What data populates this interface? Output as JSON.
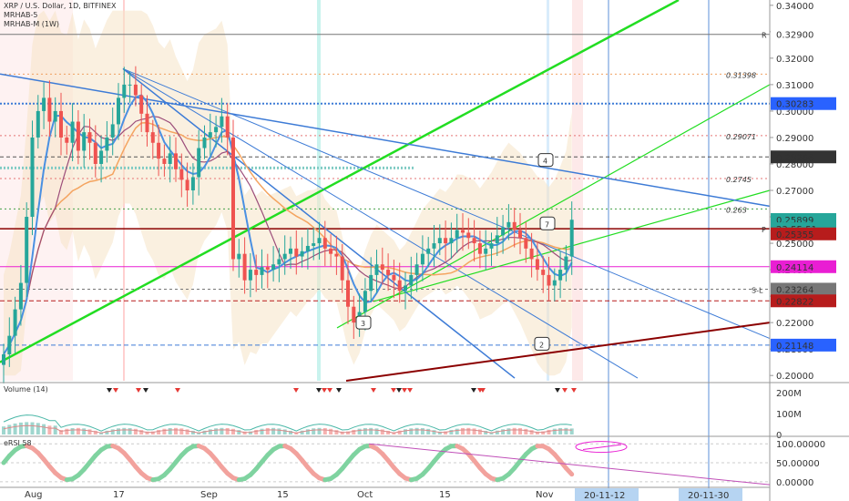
{
  "header": {
    "symbol_line": "XRP / U.S. Dollar, 1D, BITFINEX",
    "indicator_1": "MRHAB-5",
    "indicator_2": "MRHAB-M (1W)"
  },
  "colors": {
    "up": "#26a69a",
    "down": "#ef5350",
    "green_line": "#22dd22",
    "blue_line": "#3d7bd6",
    "maroon": "#8b0000",
    "magenta": "#e91ed3"
  },
  "chart_data": [
    {
      "type": "candlestick",
      "title": "XRP / U.S. Dollar, 1D, BITFINEX",
      "x_ticks": [
        "Aug",
        "17",
        "Sep",
        "15",
        "Oct",
        "15",
        "Nov",
        "20-11-12",
        "20-11-30"
      ],
      "y_ticks": [
        0.34,
        0.33,
        0.32,
        0.31,
        0.3,
        0.29,
        0.28,
        0.27,
        0.26,
        0.25,
        0.24,
        0.23,
        0.22,
        0.21,
        0.2
      ],
      "y_tick_labels": [
        "0.34000",
        "0.33000",
        "0.32000",
        "0.31000",
        "0.30000",
        "0.29000",
        "0.28000",
        "0.27000",
        "0.26000",
        "0.25000",
        "0.24000",
        "0.23000",
        "0.22000",
        "0.21000",
        "0.20000"
      ],
      "ylim": [
        0.198,
        0.342
      ],
      "close": [
        0.208,
        0.215,
        0.225,
        0.235,
        0.26,
        0.29,
        0.3,
        0.305,
        0.296,
        0.3,
        0.29,
        0.288,
        0.296,
        0.285,
        0.292,
        0.288,
        0.28,
        0.285,
        0.29,
        0.295,
        0.305,
        0.31,
        0.31,
        0.306,
        0.299,
        0.292,
        0.288,
        0.282,
        0.28,
        0.284,
        0.278,
        0.274,
        0.27,
        0.275,
        0.286,
        0.29,
        0.292,
        0.294,
        0.298,
        0.29,
        0.244,
        0.246,
        0.236,
        0.24,
        0.238,
        0.241,
        0.24,
        0.242,
        0.244,
        0.246,
        0.248,
        0.245,
        0.247,
        0.249,
        0.25,
        0.252,
        0.248,
        0.246,
        0.245,
        0.236,
        0.226,
        0.22,
        0.224,
        0.232,
        0.238,
        0.242,
        0.24,
        0.238,
        0.236,
        0.232,
        0.234,
        0.238,
        0.242,
        0.246,
        0.248,
        0.25,
        0.252,
        0.25,
        0.252,
        0.255,
        0.254,
        0.252,
        0.25,
        0.246,
        0.248,
        0.25,
        0.253,
        0.256,
        0.258,
        0.255,
        0.252,
        0.248,
        0.244,
        0.24,
        0.238,
        0.234,
        0.236,
        0.24,
        0.245,
        0.2589
      ],
      "price_labels": [
        {
          "value": 0.329,
          "text": "0.32900",
          "color": "#ffffff",
          "text_color": "#333333"
        },
        {
          "value": 0.30283,
          "text": "0.30283",
          "color": "#2962ff",
          "text_color": "#ffffff"
        },
        {
          "value": 0.28266,
          "text": "0.28266",
          "color": "#333333",
          "text_color": "#ffffff"
        },
        {
          "value": 0.25899,
          "text": "0.25899",
          "color": "#26a69a",
          "text_color": "#ffffff"
        },
        {
          "value": 0.2555,
          "text": "23:55:51",
          "color": "#26a69a",
          "text_color": "#ffffff"
        },
        {
          "value": 0.25355,
          "text": "0.25355",
          "color": "#b71c1c",
          "text_color": "#ffffff"
        },
        {
          "value": 0.24114,
          "text": "0.24114",
          "color": "#e91ed3",
          "text_color": "#ffffff"
        },
        {
          "value": 0.23264,
          "text": "0.23264",
          "color": "#777777",
          "text_color": "#ffffff"
        },
        {
          "value": 0.22822,
          "text": "0.22822",
          "color": "#b71c1c",
          "text_color": "#ffffff"
        },
        {
          "value": 0.21148,
          "text": "0.21148",
          "color": "#2962ff",
          "text_color": "#ffffff"
        }
      ],
      "fib_labels": [
        {
          "value": 0.31398,
          "text": "0.31398"
        },
        {
          "value": 0.29071,
          "text": "0.29071"
        },
        {
          "value": 0.2745,
          "text": "0.2745"
        },
        {
          "value": 0.263,
          "text": "0.263"
        }
      ],
      "level_marks": [
        {
          "value": 0.329,
          "text": "R"
        },
        {
          "value": 0.2555,
          "text": "P"
        },
        {
          "value": 0.23264,
          "text": "S-L"
        }
      ],
      "wave_labels": [
        "4",
        "7",
        "3",
        "2"
      ]
    },
    {
      "type": "bar",
      "title": "Volume (14)",
      "y_tick_labels": [
        "200M",
        "100M",
        "0"
      ],
      "ylim": [
        0,
        240
      ]
    },
    {
      "type": "line",
      "title": "eRSI 58",
      "y_tick_labels": [
        "100.00000",
        "50.00000",
        "0.00000"
      ],
      "ylim": [
        -10,
        115
      ]
    }
  ]
}
